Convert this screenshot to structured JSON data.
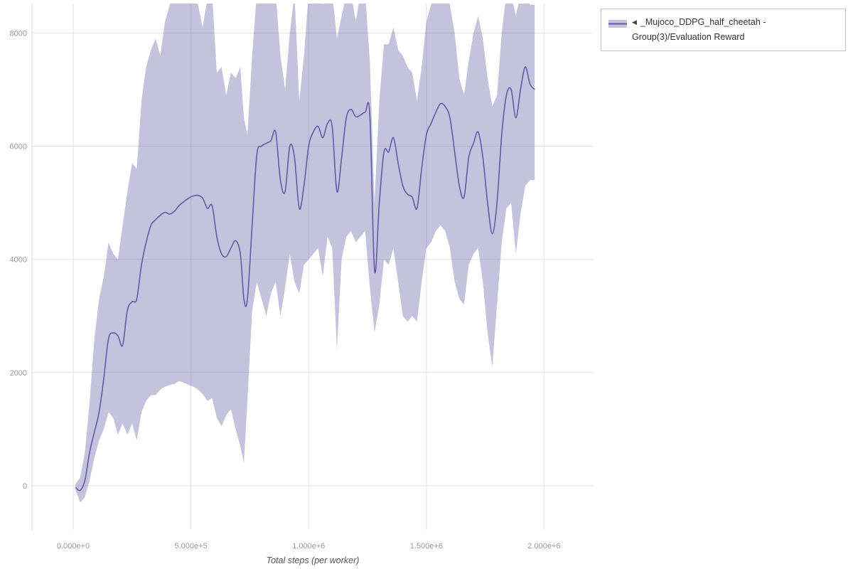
{
  "colors": {
    "line": "#635aa6",
    "band": "rgba(99,90,166,0.37)",
    "grid": "#e3e3e3",
    "spine": "#d9d9d9",
    "tick_text": "#999999",
    "axis_title": "#555555",
    "legend_border": "#c4c4c4"
  },
  "legend": {
    "toggle_icon": "◀",
    "label": "_Mujoco_DDPG_half_cheetah - Group(3)/Evaluation Reward"
  },
  "chart_data": {
    "type": "line",
    "title": "",
    "xlabel": "Total steps (per worker)",
    "ylabel": "",
    "grid": true,
    "legend_position": "top-right",
    "xlim": [
      -175000,
      2210000
    ],
    "ylim": [
      -780,
      8520
    ],
    "x_tick_values": [
      0,
      500000,
      1000000,
      1500000,
      2000000
    ],
    "x_tick_labels": [
      "0.000e+0",
      "5.000e+5",
      "1.000e+6",
      "1.500e+6",
      "2.000e+6"
    ],
    "y_tick_values": [
      0,
      2000,
      4000,
      6000,
      8000
    ],
    "y_tick_labels": [
      "0",
      "2000",
      "4000",
      "6000",
      "8000"
    ],
    "series": [
      {
        "name": "_Mujoco_DDPG_half_cheetah - Group(3)/Evaluation Reward",
        "color": "#635aa6",
        "band_color": "rgba(99,90,166,0.37)",
        "x": [
          10000,
          30000,
          50000,
          70000,
          90000,
          110000,
          130000,
          150000,
          170000,
          190000,
          210000,
          230000,
          250000,
          270000,
          290000,
          310000,
          330000,
          350000,
          370000,
          390000,
          410000,
          430000,
          450000,
          470000,
          490000,
          510000,
          530000,
          550000,
          570000,
          590000,
          610000,
          630000,
          650000,
          670000,
          690000,
          710000,
          725000,
          740000,
          760000,
          780000,
          800000,
          820000,
          840000,
          860000,
          880000,
          900000,
          920000,
          940000,
          960000,
          980000,
          1000000,
          1020000,
          1040000,
          1060000,
          1080000,
          1100000,
          1120000,
          1140000,
          1160000,
          1180000,
          1200000,
          1220000,
          1240000,
          1260000,
          1280000,
          1300000,
          1320000,
          1340000,
          1360000,
          1380000,
          1400000,
          1420000,
          1440000,
          1460000,
          1480000,
          1500000,
          1520000,
          1540000,
          1560000,
          1580000,
          1600000,
          1620000,
          1640000,
          1660000,
          1680000,
          1700000,
          1720000,
          1740000,
          1760000,
          1780000,
          1800000,
          1820000,
          1840000,
          1860000,
          1880000,
          1900000,
          1920000,
          1940000,
          1960000
        ],
        "mean": [
          -30,
          -80,
          100,
          600,
          950,
          1300,
          1900,
          2600,
          2700,
          2650,
          2480,
          3100,
          3250,
          3300,
          3900,
          4300,
          4600,
          4700,
          4780,
          4830,
          4800,
          4850,
          4950,
          5020,
          5080,
          5120,
          5130,
          5080,
          4900,
          4950,
          4400,
          4100,
          4050,
          4200,
          4330,
          4100,
          3300,
          3300,
          4600,
          5850,
          6000,
          6050,
          6100,
          6250,
          5400,
          5200,
          6000,
          5800,
          4900,
          5300,
          6000,
          6250,
          6350,
          6150,
          6400,
          6350,
          5200,
          5800,
          6500,
          6650,
          6520,
          6550,
          6600,
          6550,
          3800,
          5000,
          5900,
          5900,
          6150,
          5700,
          5300,
          5150,
          5100,
          4900,
          5600,
          6200,
          6400,
          6600,
          6750,
          6700,
          6500,
          5900,
          5300,
          5100,
          5800,
          6050,
          6250,
          5800,
          5000,
          4450,
          5000,
          6200,
          6900,
          7000,
          6500,
          7000,
          7400,
          7100,
          7000
        ],
        "lower": [
          -80,
          -300,
          -200,
          100,
          500,
          800,
          1000,
          1300,
          1200,
          900,
          1100,
          900,
          1100,
          800,
          1300,
          1500,
          1600,
          1600,
          1700,
          1750,
          1780,
          1800,
          1850,
          1820,
          1780,
          1750,
          1700,
          1620,
          1500,
          1550,
          1200,
          1050,
          1250,
          1350,
          1000,
          700,
          400,
          1500,
          3100,
          3600,
          3300,
          3000,
          3400,
          3600,
          3000,
          3500,
          4100,
          3600,
          3400,
          3900,
          4000,
          4100,
          4200,
          3700,
          4400,
          4200,
          2400,
          4000,
          4400,
          4500,
          4300,
          4400,
          4500,
          3500,
          2700,
          3200,
          4000,
          3900,
          4200,
          3600,
          3000,
          2900,
          3000,
          2900,
          3600,
          4200,
          4300,
          4500,
          4600,
          4500,
          4200,
          3600,
          3300,
          3200,
          3900,
          4100,
          4200,
          3600,
          2700,
          2100,
          3200,
          4300,
          4900,
          5000,
          4100,
          4800,
          5300,
          5400,
          5400
        ],
        "upper": [
          30,
          150,
          600,
          1500,
          2600,
          3300,
          3700,
          4300,
          4100,
          4000,
          4600,
          5200,
          5700,
          5600,
          6800,
          7400,
          7700,
          7900,
          7600,
          8200,
          8500,
          8700,
          8700,
          8700,
          8700,
          8700,
          8500,
          8100,
          8600,
          8700,
          7300,
          7400,
          6900,
          7300,
          7200,
          7400,
          6500,
          6200,
          7600,
          8700,
          8700,
          8700,
          8700,
          8700,
          7600,
          7000,
          8000,
          8700,
          6800,
          7600,
          8700,
          8700,
          8700,
          8500,
          8700,
          8700,
          7900,
          8300,
          8700,
          8700,
          8200,
          8700,
          8700,
          7500,
          5000,
          6800,
          7800,
          7800,
          8100,
          7700,
          7600,
          7400,
          7300,
          6800,
          7400,
          8200,
          8500,
          8700,
          8700,
          8700,
          8500,
          8000,
          7200,
          6900,
          7500,
          8000,
          8300,
          7900,
          7200,
          6700,
          6900,
          8000,
          8700,
          8700,
          8300,
          8700,
          8700,
          8500,
          8500
        ]
      }
    ]
  }
}
